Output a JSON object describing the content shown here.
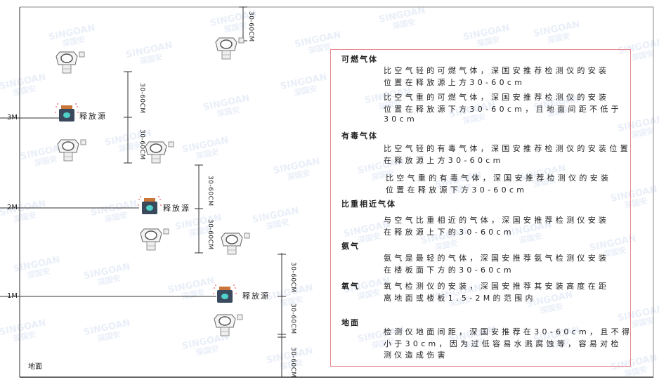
{
  "levels": {
    "m3": "3M",
    "m2": "2M",
    "m1": "1M",
    "ground": "地面"
  },
  "release_source_label": "释放源",
  "dimension_label": "30-60CM",
  "watermark": {
    "brand": "SINGOAN",
    "cn": "深国安"
  },
  "colors": {
    "box_border": "#e88a8f",
    "line": "#333333",
    "source_body": "#3a4a5c",
    "source_face": "#4fd0c8",
    "source_cap": "#c8763a"
  },
  "panel": {
    "sections": [
      {
        "heading": "可燃气体",
        "paragraphs": [
          [
            "比空气轻的可燃气体，深国安推荐检测仪的安装",
            "位置在释放源上方30-60cm"
          ],
          [
            "比空气重的可燃气体，深国安推荐检测仪的安装",
            "位置在释放源下方30-60cm，且地面间距不低于",
            "30cm"
          ]
        ]
      },
      {
        "heading": "有毒气体",
        "paragraphs": [
          [
            "比空气轻的有毒气体，深国安推荐检测仪的安装位置",
            "在释放源上方30-60cm"
          ],
          [
            "比空气重的有毒气体，深国安推荐检测仪的安装",
            "位置在释放源下方30-60cm"
          ]
        ]
      },
      {
        "heading": "比重相近气体",
        "paragraphs": [
          [
            "与空气比重相近的气体，深国安推荐检测仪安装",
            "在释放源上下的30-60cm"
          ]
        ]
      },
      {
        "heading": "氨气",
        "paragraphs": [
          [
            "氨气是最轻的气体，深国安推荐氨气检测仪安装",
            "在楼板面下方的30-60cm"
          ]
        ]
      },
      {
        "heading": "氧气",
        "paragraphs": [
          [
            "氧气检测仪的安装，深国安推荐其安装高度在距",
            "离地面或楼板1.5-2M的范围内"
          ]
        ]
      },
      {
        "heading": "地面",
        "paragraphs": [
          [
            "检测仪地面间距，深国安推荐在30-60cm，且不得",
            "小于30cm，因为过低容易水溅腐蚀等，容易对检",
            "测仪造成伤害"
          ]
        ]
      }
    ]
  }
}
